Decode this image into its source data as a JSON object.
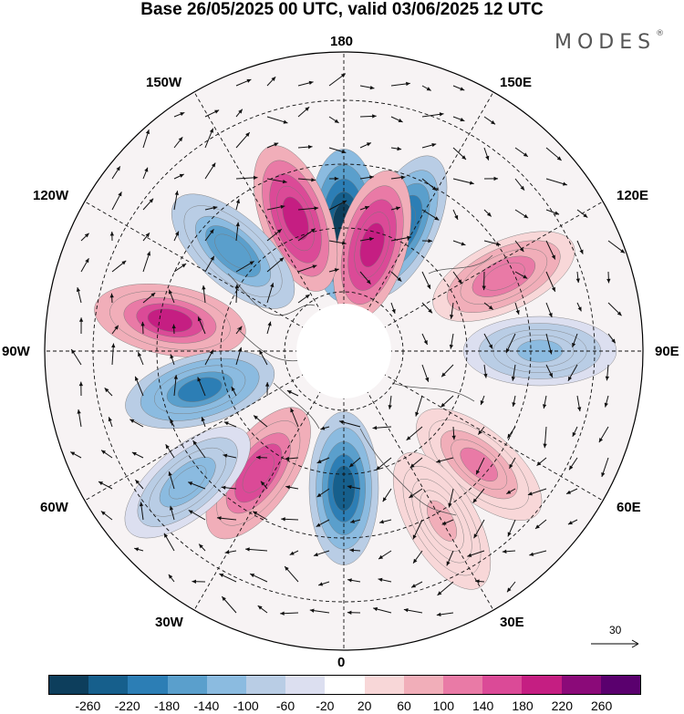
{
  "title": "Base 26/05/2025 00 UTC, valid 03/06/2025 12 UTC",
  "brand": "MODES",
  "brand_mark": "®",
  "longitude_labels": {
    "top": "180",
    "bottom": "0",
    "left": "90W",
    "right": "90E",
    "upper_left_1": "150W",
    "upper_left_2": "120W",
    "upper_right_1": "150E",
    "upper_right_2": "120E",
    "lower_left_1": "60W",
    "lower_left_2": "30W",
    "lower_right_1": "60E",
    "lower_right_2": "30E"
  },
  "reference_vector": "30",
  "colorbar": {
    "colors": [
      "#0d3e5c",
      "#165f8c",
      "#2c7eb5",
      "#5a9fcc",
      "#8bbbe0",
      "#b9cde5",
      "#dcdff0",
      "#ffffff",
      "#f8d7d8",
      "#f1aeb9",
      "#e97aa6",
      "#db4a97",
      "#c51e82",
      "#8b0a79",
      "#5a006e"
    ],
    "tick_labels": [
      "-260",
      "-220",
      "-180",
      "-140",
      "-100",
      "-60",
      "-20",
      "20",
      "60",
      "100",
      "140",
      "180",
      "220",
      "260"
    ]
  },
  "anomaly_centers": [
    {
      "lon": 180,
      "lat": 58,
      "value": -280
    },
    {
      "lon": 155,
      "lat": 55,
      "value": -220
    },
    {
      "lon": 165,
      "lat": 62,
      "value": 200
    },
    {
      "lon": -160,
      "lat": 54,
      "value": 200
    },
    {
      "lon": -132,
      "lat": 52,
      "value": -180
    },
    {
      "lon": -100,
      "lat": 45,
      "value": 180
    },
    {
      "lon": -75,
      "lat": 52,
      "value": -200
    },
    {
      "lon": -35,
      "lat": 52,
      "value": 170
    },
    {
      "lon": -50,
      "lat": 38,
      "value": -120
    },
    {
      "lon": 0,
      "lat": 55,
      "value": -250
    },
    {
      "lon": 115,
      "lat": 45,
      "value": 130
    },
    {
      "lon": 90,
      "lat": 40,
      "value": -110
    },
    {
      "lon": 50,
      "lat": 45,
      "value": 100
    },
    {
      "lon": 30,
      "lat": 40,
      "value": 60
    }
  ]
}
